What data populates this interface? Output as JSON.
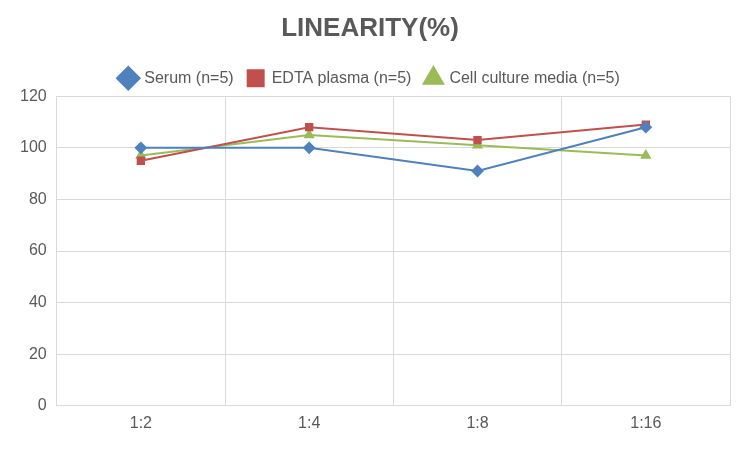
{
  "chart_data": {
    "type": "line",
    "title": "LINEARITY(%)",
    "categories": [
      "1:2",
      "1:4",
      "1:8",
      "1:16"
    ],
    "series": [
      {
        "name": "Serum (n=5)",
        "color": "#4f81bd",
        "marker": "diamond",
        "values": [
          100,
          100,
          91,
          108
        ]
      },
      {
        "name": "EDTA plasma (n=5)",
        "color": "#c0504d",
        "marker": "square",
        "values": [
          95,
          108,
          103,
          109
        ]
      },
      {
        "name": "Cell culture media (n=5)",
        "color": "#9bbb59",
        "marker": "triangle",
        "values": [
          97,
          105,
          101,
          97
        ]
      }
    ],
    "ylim": [
      0,
      120
    ],
    "yticks": [
      0,
      20,
      40,
      60,
      80,
      100,
      120
    ],
    "grid": true,
    "legend": "top"
  }
}
